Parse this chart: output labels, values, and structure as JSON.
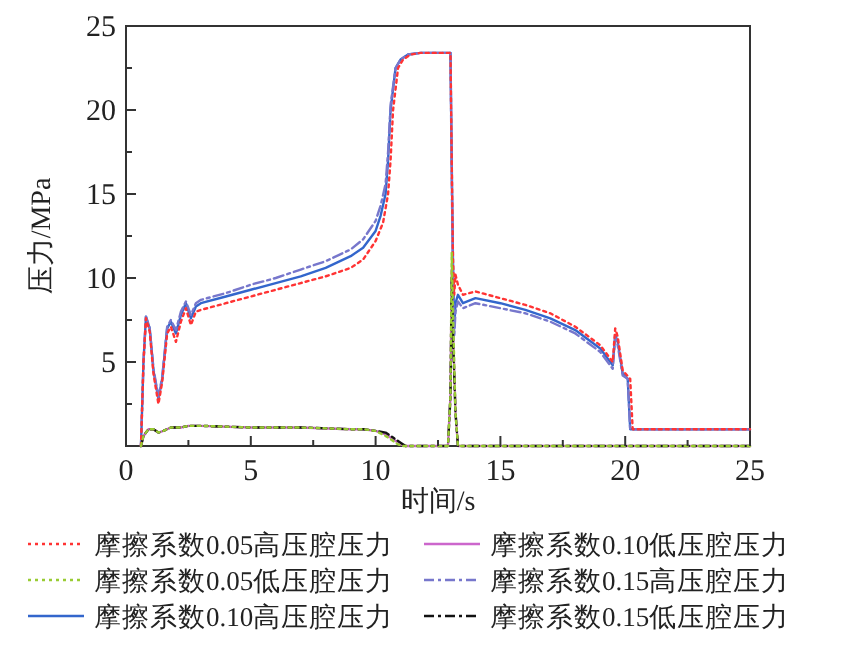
{
  "chart_data": {
    "type": "line",
    "xlabel": "时间/s",
    "ylabel": "压力/MPa",
    "xlim": [
      0,
      25
    ],
    "ylim": [
      0,
      25
    ],
    "xticks": [
      0,
      {
        "value": 2.5,
        "label": null
      },
      5,
      {
        "value": 7.5,
        "label": null
      },
      10,
      {
        "value": 12.5,
        "label": null
      },
      15,
      {
        "value": 17.5,
        "label": null
      },
      20,
      {
        "value": 22.5,
        "label": null
      },
      25
    ],
    "yticks": [
      {
        "value": 2.5,
        "label": null
      },
      5,
      {
        "value": 7.5,
        "label": null
      },
      10,
      {
        "value": 12.5,
        "label": null
      },
      15,
      {
        "value": 17.5,
        "label": null
      },
      20,
      {
        "value": 22.5,
        "label": null
      },
      25
    ],
    "grid": false,
    "legend": "bottom",
    "marker": "none",
    "series": [
      {
        "name": "摩擦系数0.05高压腔压力",
        "color": "#ff3333",
        "line_style": "dotted",
        "x": [
          0.6,
          0.7,
          0.8,
          0.95,
          1.1,
          1.3,
          1.45,
          1.65,
          1.8,
          2.0,
          2.2,
          2.4,
          2.6,
          2.8,
          3.0,
          4,
          5,
          6,
          7,
          8,
          9,
          9.5,
          10,
          10.3,
          10.5,
          10.6,
          10.7,
          10.9,
          11.1,
          11.4,
          11.8,
          12,
          13.0,
          13.05,
          13.1,
          13.15,
          13.2,
          13.3,
          13.5,
          14,
          15,
          16,
          17,
          18,
          19,
          19.5,
          19.6,
          19.7,
          19.9,
          20.2,
          20.3,
          20.4,
          25
        ],
        "values": [
          0,
          5,
          7.6,
          6.8,
          4.3,
          2.5,
          3.8,
          6.7,
          7.1,
          6.2,
          7.4,
          8.2,
          7.2,
          8,
          8.1,
          8.5,
          8.9,
          9.3,
          9.7,
          10.1,
          10.6,
          11.1,
          12.2,
          13.3,
          15,
          17,
          20,
          22.5,
          23,
          23.3,
          23.4,
          23.4,
          23.4,
          17,
          11.2,
          9,
          10.2,
          9.6,
          9,
          9.2,
          8.8,
          8.4,
          7.9,
          7.1,
          6,
          5,
          7,
          6.5,
          4.5,
          4,
          1,
          1,
          1
        ]
      },
      {
        "name": "摩擦系数0.05低压腔压力",
        "color": "#99cc33",
        "line_style": "dotted",
        "x": [
          0.6,
          0.7,
          0.9,
          1.1,
          1.3,
          1.5,
          1.8,
          2.2,
          2.5,
          3,
          5,
          7,
          9,
          9.5,
          10,
          10.4,
          10.6,
          10.9,
          11.1,
          12.9,
          13.0,
          13.05,
          13.1,
          13.2,
          13.3,
          25
        ],
        "values": [
          0,
          0.6,
          1.0,
          1.0,
          0.8,
          0.9,
          1.1,
          1.1,
          1.2,
          1.2,
          1.1,
          1.1,
          1.0,
          1.0,
          0.9,
          0.6,
          0.4,
          0.1,
          0,
          0,
          3,
          11.5,
          8,
          2,
          0,
          0
        ]
      },
      {
        "name": "摩擦系数0.10高压腔压力",
        "color": "#3366cc",
        "line_style": "solid",
        "x": [
          0.6,
          0.7,
          0.8,
          0.95,
          1.1,
          1.3,
          1.45,
          1.65,
          1.8,
          2.0,
          2.2,
          2.4,
          2.6,
          2.8,
          3.0,
          4,
          5,
          6,
          7,
          8,
          9,
          9.5,
          10,
          10.2,
          10.4,
          10.5,
          10.6,
          10.8,
          11,
          11.3,
          11.8,
          12,
          13.0,
          13.05,
          13.1,
          13.15,
          13.2,
          13.3,
          13.5,
          14,
          15,
          16,
          17,
          18,
          19,
          19.5,
          19.6,
          19.7,
          19.9,
          20.1,
          20.2,
          20.3,
          25
        ],
        "values": [
          0,
          5,
          7.7,
          7,
          4.5,
          2.8,
          4,
          7,
          7.4,
          6.7,
          7.8,
          8.5,
          7.6,
          8.3,
          8.5,
          8.9,
          9.3,
          9.7,
          10.1,
          10.6,
          11.3,
          11.8,
          12.8,
          13.7,
          15,
          17,
          20,
          22.5,
          23,
          23.3,
          23.4,
          23.4,
          23.4,
          17,
          11,
          7,
          8.5,
          9,
          8.5,
          8.8,
          8.5,
          8.1,
          7.6,
          6.9,
          5.8,
          4.8,
          6.6,
          6.2,
          4.3,
          4,
          1,
          1,
          1
        ]
      },
      {
        "name": "摩擦系数0.10低压腔压力",
        "color": "#cc66cc",
        "line_style": "solid",
        "x": [
          0.6,
          0.7,
          0.9,
          1.1,
          1.3,
          1.5,
          1.8,
          2.2,
          2.5,
          3,
          5,
          7,
          9,
          9.5,
          10,
          10.4,
          10.7,
          11,
          11.2,
          12.9,
          13.0,
          13.05,
          13.1,
          13.2,
          13.3,
          25
        ],
        "values": [
          0,
          0.6,
          1.0,
          1.0,
          0.8,
          0.9,
          1.1,
          1.1,
          1.2,
          1.2,
          1.1,
          1.1,
          1.0,
          1.0,
          0.9,
          0.7,
          0.4,
          0.1,
          0,
          0,
          3,
          10.5,
          7,
          2,
          0,
          0
        ]
      },
      {
        "name": "摩擦系数0.15高压腔压力",
        "color": "#7777cc",
        "line_style": "dashdot",
        "x": [
          0.6,
          0.7,
          0.8,
          0.95,
          1.1,
          1.3,
          1.45,
          1.65,
          1.8,
          2.0,
          2.2,
          2.4,
          2.6,
          2.8,
          3.0,
          4,
          5,
          6,
          7,
          8,
          9,
          9.5,
          10,
          10.2,
          10.4,
          10.5,
          10.6,
          10.8,
          11,
          11.3,
          11.8,
          12,
          13.0,
          13.05,
          13.1,
          13.15,
          13.2,
          13.3,
          13.5,
          14,
          15,
          16,
          17,
          18,
          19,
          19.5,
          19.6,
          19.7,
          19.9,
          20.1,
          20.2,
          20.3,
          25
        ],
        "values": [
          0,
          5,
          7.7,
          7,
          4.6,
          2.9,
          4.1,
          7.1,
          7.5,
          6.9,
          8,
          8.6,
          7.8,
          8.5,
          8.7,
          9.1,
          9.6,
          10,
          10.5,
          11,
          11.7,
          12.3,
          13.4,
          14.3,
          15.6,
          17.5,
          20.3,
          22.5,
          23,
          23.3,
          23.4,
          23.4,
          23.4,
          16,
          10,
          6.5,
          8,
          8.6,
          8.2,
          8.5,
          8.2,
          7.9,
          7.4,
          6.7,
          5.6,
          4.6,
          6.5,
          6,
          4.2,
          4,
          1,
          1,
          1
        ]
      },
      {
        "name": "摩擦系数0.15低压腔压力",
        "color": "#111111",
        "line_style": "dashdot",
        "x": [
          0.6,
          0.7,
          0.9,
          1.1,
          1.3,
          1.5,
          1.8,
          2.2,
          2.5,
          3,
          5,
          7,
          9,
          9.5,
          10,
          10.4,
          10.7,
          11,
          11.2,
          12.9,
          13.0,
          13.05,
          13.1,
          13.2,
          13.3,
          25
        ],
        "values": [
          0,
          0.6,
          1.0,
          1.0,
          0.8,
          0.9,
          1.1,
          1.1,
          1.2,
          1.2,
          1.1,
          1.1,
          1.0,
          1.0,
          0.9,
          0.8,
          0.5,
          0.2,
          0,
          0,
          3,
          10,
          6.5,
          2,
          0,
          0
        ]
      }
    ]
  }
}
